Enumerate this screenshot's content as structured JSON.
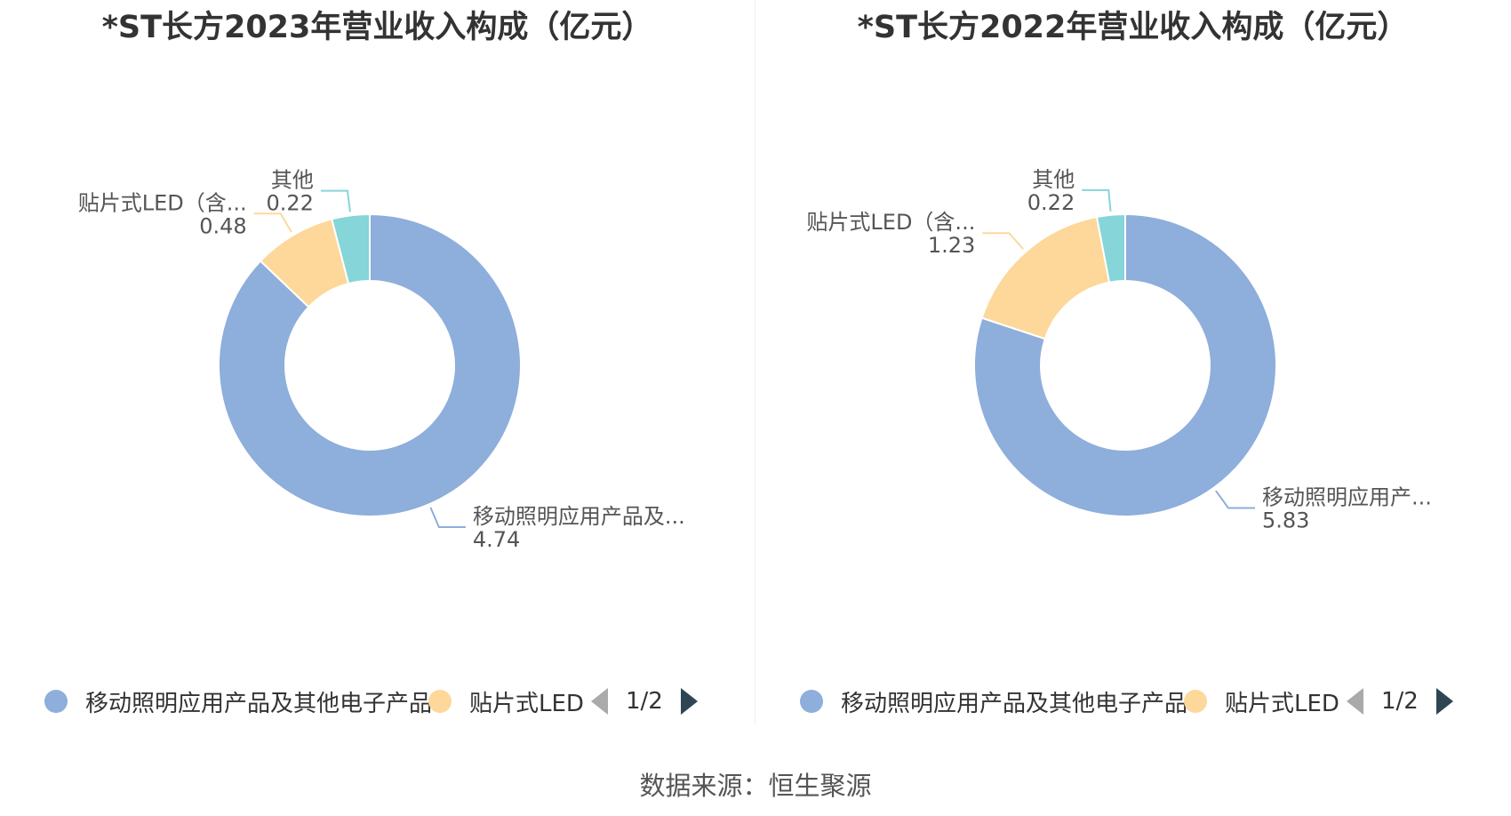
{
  "chart_data": [
    {
      "type": "pie",
      "title": "*ST长方2023年营业收入构成（亿元）",
      "slices": [
        {
          "name": "移动照明应用产品及其他电子产品",
          "label_name": "移动照明应用产品及...",
          "value": 4.74,
          "value_label": "4.74",
          "color": "#8eaedb"
        },
        {
          "name": "贴片式LED",
          "label_name": "贴片式LED（含...",
          "value": 0.48,
          "value_label": "0.48",
          "color": "#fdd89a"
        },
        {
          "name": "其他",
          "label_name": "其他",
          "value": 0.22,
          "value_label": "0.22",
          "color": "#86d5d8"
        }
      ],
      "legend": {
        "items": [
          "移动照明应用产品及其他电子产品",
          "贴片式LED"
        ],
        "page": "1/2"
      }
    },
    {
      "type": "pie",
      "title": "*ST长方2022年营业收入构成（亿元）",
      "slices": [
        {
          "name": "移动照明应用产品及其他电子产品",
          "label_name": "移动照明应用产...",
          "value": 5.83,
          "value_label": "5.83",
          "color": "#8eaedb"
        },
        {
          "name": "贴片式LED",
          "label_name": "贴片式LED（含...",
          "value": 1.23,
          "value_label": "1.23",
          "color": "#fdd89a"
        },
        {
          "name": "其他",
          "label_name": "其他",
          "value": 0.22,
          "value_label": "0.22",
          "color": "#86d5d8"
        }
      ],
      "legend": {
        "items": [
          "移动照明应用产品及其他电子产品",
          "贴片式LED"
        ],
        "page": "1/2"
      }
    }
  ],
  "source": "数据来源：恒生聚源"
}
